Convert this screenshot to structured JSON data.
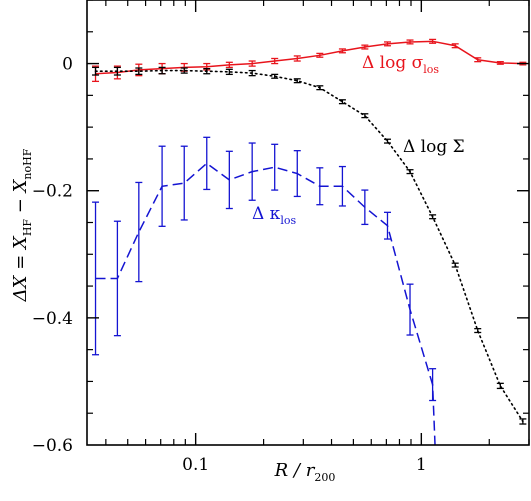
{
  "chart_data": {
    "type": "line",
    "xscale": "log",
    "xlim": [
      0.033,
      3.0
    ],
    "ylim": [
      -0.6,
      0.1
    ],
    "x_ticks": [
      {
        "value": 0.1,
        "label": "0.1"
      },
      {
        "value": 1,
        "label": "1"
      }
    ],
    "y_ticks": [
      {
        "value": 0,
        "label": "0"
      },
      {
        "value": -0.2,
        "label": "−0.2"
      },
      {
        "value": -0.4,
        "label": "−0.4"
      },
      {
        "value": -0.6,
        "label": "−0.6"
      }
    ],
    "xlabel": {
      "main": "R / r",
      "sub": "200"
    },
    "ylabel": {
      "main": "ΔX = X",
      "sub1": "HF",
      "mid": " − X",
      "sub2": "noHF"
    },
    "series": [
      {
        "name": "Δ log σ",
        "name_sub": "los",
        "color": "#e8141c",
        "style": "solid",
        "x": [
          0.036,
          0.045,
          0.056,
          0.071,
          0.089,
          0.112,
          0.141,
          0.178,
          0.224,
          0.282,
          0.355,
          0.447,
          0.562,
          0.708,
          0.891,
          1.122,
          1.413,
          1.778,
          2.239,
          2.818
        ],
        "y": [
          -0.016,
          -0.014,
          -0.01,
          -0.008,
          -0.006,
          -0.005,
          -0.002,
          0.0,
          0.004,
          0.008,
          0.013,
          0.02,
          0.026,
          0.031,
          0.034,
          0.035,
          0.028,
          0.006,
          0.001,
          0.0
        ],
        "err": [
          0.012,
          0.01,
          0.009,
          0.008,
          0.006,
          0.005,
          0.004,
          0.004,
          0.004,
          0.004,
          0.003,
          0.003,
          0.003,
          0.003,
          0.003,
          0.003,
          0.003,
          0.003,
          0.002,
          0.002
        ]
      },
      {
        "name": "Δ log Σ",
        "color": "#000000",
        "style": "dotted",
        "x": [
          0.036,
          0.045,
          0.056,
          0.071,
          0.089,
          0.112,
          0.141,
          0.178,
          0.224,
          0.282,
          0.355,
          0.447,
          0.562,
          0.708,
          0.891,
          1.122,
          1.413,
          1.778,
          2.239,
          2.818
        ],
        "y": [
          -0.012,
          -0.012,
          -0.012,
          -0.011,
          -0.011,
          -0.012,
          -0.013,
          -0.015,
          -0.02,
          -0.027,
          -0.038,
          -0.06,
          -0.082,
          -0.122,
          -0.17,
          -0.241,
          -0.317,
          -0.42,
          -0.507,
          -0.563
        ],
        "err": [
          0.006,
          0.006,
          0.005,
          0.005,
          0.004,
          0.004,
          0.004,
          0.004,
          0.003,
          0.003,
          0.003,
          0.003,
          0.003,
          0.003,
          0.003,
          0.003,
          0.003,
          0.003,
          0.004,
          0.004
        ]
      },
      {
        "name": "Δ κ",
        "name_sub": "los",
        "color": "#1414d2",
        "style": "dashed",
        "x": [
          0.036,
          0.045,
          0.056,
          0.071,
          0.089,
          0.112,
          0.141,
          0.178,
          0.224,
          0.282,
          0.355,
          0.447,
          0.562,
          0.708,
          0.891,
          1.122,
          1.15
        ],
        "y": [
          -0.338,
          -0.338,
          -0.265,
          -0.193,
          -0.188,
          -0.157,
          -0.183,
          -0.17,
          -0.163,
          -0.173,
          -0.193,
          -0.193,
          -0.226,
          -0.255,
          -0.387,
          -0.505,
          -0.6
        ],
        "err": [
          0.12,
          0.09,
          0.078,
          0.063,
          0.058,
          0.041,
          0.045,
          0.045,
          0.036,
          0.036,
          0.029,
          0.031,
          0.027,
          0.021,
          0.04,
          0.025,
          0
        ]
      }
    ]
  }
}
